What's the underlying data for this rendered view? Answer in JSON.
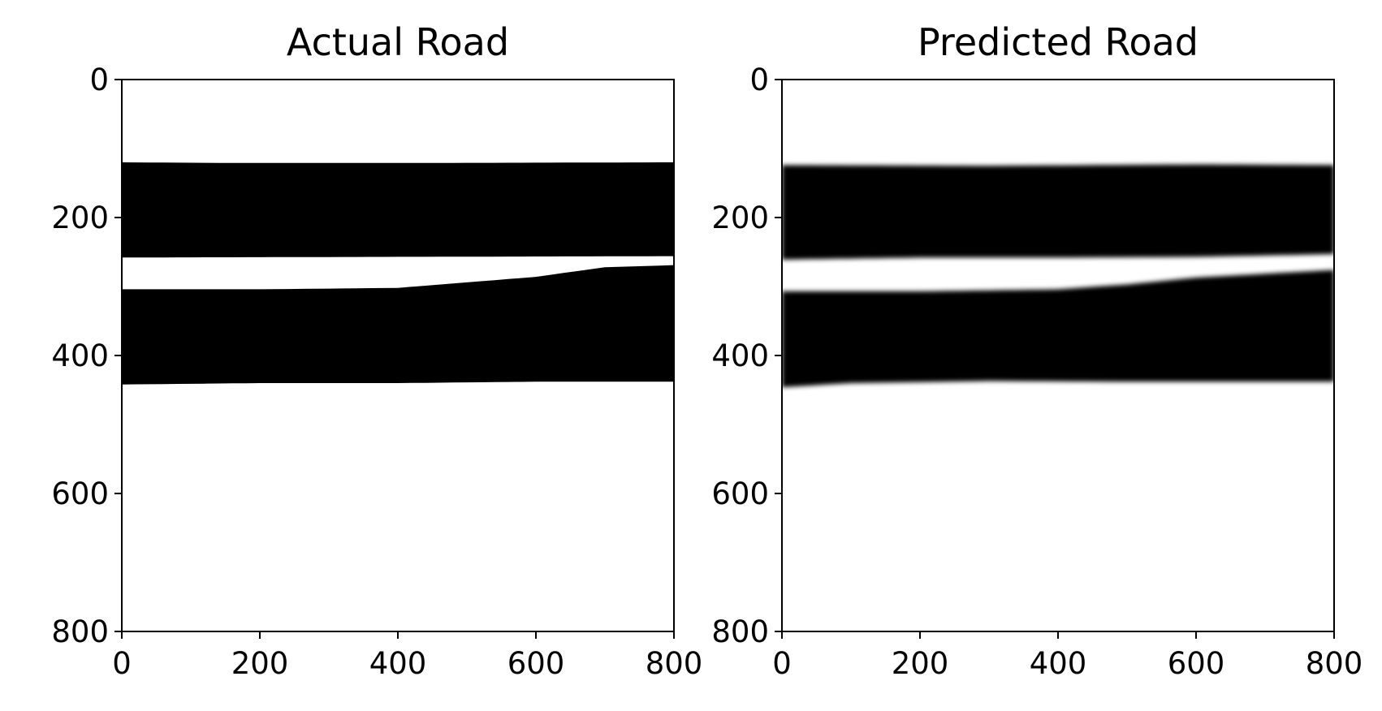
{
  "chart_data": [
    {
      "type": "heatmap",
      "title": "Actual Road",
      "xlim": [
        0,
        800
      ],
      "ylim": [
        0,
        800
      ],
      "y_inverted": true,
      "xticks": [
        0,
        200,
        400,
        600,
        800
      ],
      "yticks": [
        0,
        200,
        400,
        600,
        800
      ],
      "xlabel": "",
      "ylabel": "",
      "grid": false,
      "colormap": "grayscale (black = road, white = background)",
      "bands": [
        {
          "name": "",
          "top": [
            [
              0,
              120
            ],
            [
              160,
              121
            ],
            [
              400,
              121
            ],
            [
              800,
              120
            ]
          ],
          "bottom": [
            [
              0,
              258
            ],
            [
              400,
              257
            ],
            [
              800,
              256
            ]
          ]
        },
        {
          "name": "",
          "top": [
            [
              0,
              304
            ],
            [
              200,
              304
            ],
            [
              400,
              302
            ],
            [
              600,
              286
            ],
            [
              700,
              272
            ],
            [
              800,
              269
            ]
          ],
          "bottom": [
            [
              0,
              442
            ],
            [
              200,
              440
            ],
            [
              400,
              440
            ],
            [
              600,
              438
            ],
            [
              800,
              438
            ]
          ]
        }
      ]
    },
    {
      "type": "heatmap",
      "title": "Predicted Road",
      "xlim": [
        0,
        800
      ],
      "ylim": [
        0,
        800
      ],
      "y_inverted": true,
      "xticks": [
        0,
        200,
        400,
        600,
        800
      ],
      "yticks": [
        0,
        200,
        400,
        600,
        800
      ],
      "xlabel": "",
      "ylabel": "",
      "grid": false,
      "colormap": "grayscale (black = road, white = background)",
      "bands": [
        {
          "name": "",
          "top": [
            [
              0,
              124
            ],
            [
              300,
              125
            ],
            [
              600,
              123
            ],
            [
              800,
              124
            ]
          ],
          "bottom": [
            [
              0,
              261
            ],
            [
              200,
              258
            ],
            [
              400,
              258
            ],
            [
              600,
              257
            ],
            [
              800,
              253
            ]
          ]
        },
        {
          "name": "",
          "top": [
            [
              0,
              307
            ],
            [
              200,
              307
            ],
            [
              400,
              304
            ],
            [
              500,
              297
            ],
            [
              600,
              287
            ],
            [
              800,
              276
            ]
          ],
          "bottom": [
            [
              0,
              446
            ],
            [
              100,
              440
            ],
            [
              300,
              437
            ],
            [
              500,
              438
            ],
            [
              800,
              438
            ]
          ]
        }
      ]
    }
  ]
}
